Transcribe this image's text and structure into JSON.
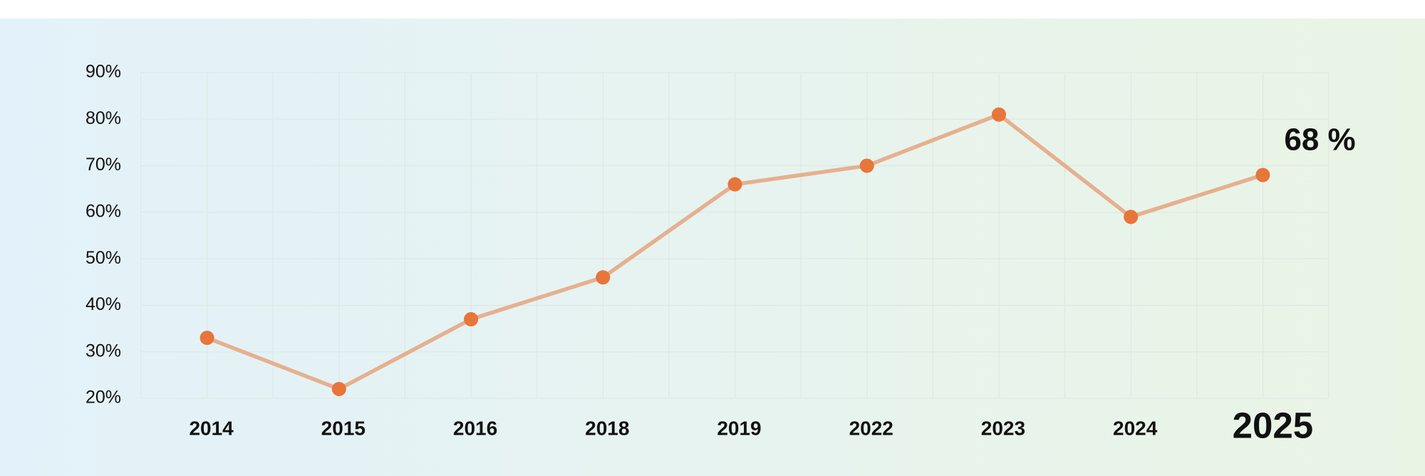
{
  "chart_data": {
    "type": "line",
    "categories": [
      "2014",
      "2015",
      "2016",
      "2018",
      "2019",
      "2022",
      "2023",
      "2024",
      "2025"
    ],
    "series": [
      {
        "name": null,
        "color": "#e8753a",
        "line_color": "#e6b08f",
        "values": [
          33,
          22,
          37,
          46,
          66,
          70,
          81,
          59,
          68
        ],
        "value_labels": [
          null,
          null,
          null,
          null,
          null,
          null,
          null,
          null,
          "68 %"
        ]
      }
    ],
    "ylim": [
      20,
      90
    ],
    "yticks": [
      {
        "value": 20,
        "label": "20%"
      },
      {
        "value": 30,
        "label": "30%"
      },
      {
        "value": 40,
        "label": "40%"
      },
      {
        "value": 50,
        "label": "50%"
      },
      {
        "value": 60,
        "label": "60%"
      },
      {
        "value": 70,
        "label": "70%"
      },
      {
        "value": 80,
        "label": "80%"
      },
      {
        "value": 90,
        "label": "90%"
      }
    ],
    "grid": true
  }
}
